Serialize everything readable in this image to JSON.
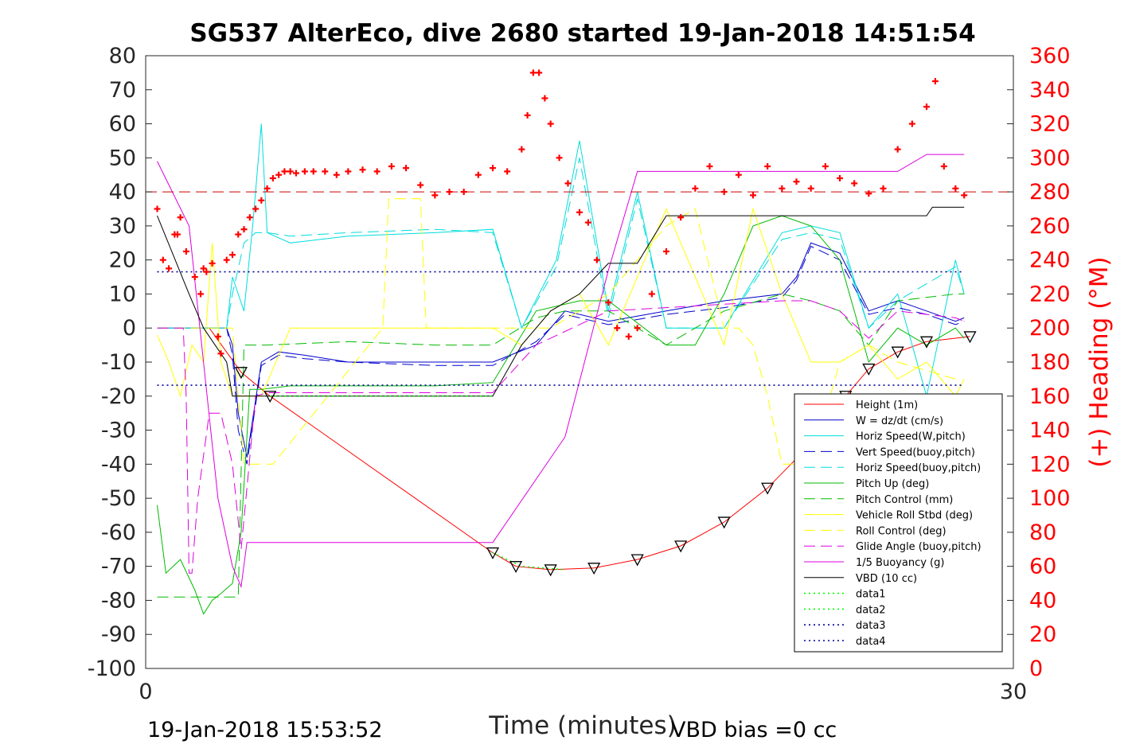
{
  "chart_data": {
    "type": "line",
    "title": "SG537 AlterEco, dive 2680 started 19-Jan-2018 14:51:54",
    "xlabel": "Time (minutes)",
    "ylabel_right": "(+) Heading (°M)",
    "xlim": [
      0,
      30
    ],
    "ylim": [
      -100,
      80
    ],
    "ylim_right": [
      0,
      360
    ],
    "xticks": [
      "0",
      "30"
    ],
    "yticks": [
      "80",
      "70",
      "60",
      "50",
      "40",
      "30",
      "20",
      "10",
      "0",
      "-10",
      "-20",
      "-30",
      "-40",
      "-50",
      "-60",
      "-70",
      "-80",
      "-90",
      "-100"
    ],
    "yticks_right": [
      "360",
      "340",
      "320",
      "300",
      "280",
      "260",
      "240",
      "220",
      "200",
      "180",
      "160",
      "140",
      "120",
      "100",
      "80",
      "60",
      "40",
      "20",
      "0"
    ],
    "footer_left": "19-Jan-2018 15:53:52",
    "footer_right": "VBD bias =0 cc",
    "legend_position": "lower-right",
    "grid": true,
    "series": [
      {
        "name": "Height (1m)",
        "color": "#ff0000",
        "style": "solid",
        "x": [
          2.2,
          3.3,
          4.3,
          12,
          12.8,
          14,
          15.5,
          17,
          18.5,
          20,
          21.5,
          23,
          24.2,
          25,
          26,
          27,
          28.5
        ],
        "y": [
          0,
          -13,
          -20,
          -66,
          -70,
          -71,
          -70.5,
          -68,
          -64,
          -57,
          -47,
          -34,
          -20,
          -12,
          -7,
          -4,
          -2.5
        ]
      },
      {
        "name": "W = dz/dt (cm/s)",
        "color": "#0000cc",
        "style": "solid",
        "x": [
          0.4,
          2.8,
          3,
          3.2,
          3.5,
          4.0,
          4.6,
          5.5,
          7,
          10,
          12,
          13.5,
          14.5,
          16,
          18,
          20,
          22,
          22.5,
          23,
          24,
          25,
          26,
          27,
          28,
          28.3
        ],
        "y": [
          0,
          0,
          -5,
          -25,
          -38,
          -10,
          -7,
          -8,
          -10,
          -10,
          -10,
          -5,
          5,
          2,
          5,
          8,
          10,
          15,
          25,
          22,
          5,
          8,
          5,
          2,
          3
        ]
      },
      {
        "name": "Horiz Speed(W,pitch)",
        "color": "#00dddd",
        "style": "solid",
        "x": [
          0.4,
          2.8,
          3,
          3.4,
          3.7,
          4.0,
          4.2,
          5,
          7,
          10,
          12,
          13,
          14.2,
          15,
          16,
          17,
          18,
          20,
          22,
          23,
          24,
          25,
          26,
          27,
          28,
          28.3
        ],
        "y": [
          0,
          0,
          15,
          5,
          30,
          60,
          28,
          25,
          27,
          28,
          29,
          0,
          20,
          55,
          5,
          40,
          0,
          0,
          28,
          30,
          28,
          0,
          10,
          -20,
          20,
          10
        ]
      },
      {
        "name": "Vert Speed(buoy,pitch)",
        "color": "#0000cc",
        "style": "dashed",
        "x": [
          0.4,
          2.8,
          3,
          3.2,
          3.5,
          4.0,
          4.6,
          5.5,
          7,
          10,
          12,
          13.5,
          14.5,
          16,
          18,
          20,
          22,
          22.5,
          23,
          24,
          25,
          26,
          27,
          28,
          28.3
        ],
        "y": [
          0,
          0,
          -8,
          -30,
          -40,
          -11,
          -8,
          -9,
          -10,
          -11,
          -11,
          -4,
          4,
          1,
          4,
          6,
          9,
          14,
          24,
          20,
          4,
          6,
          4,
          1,
          2
        ]
      },
      {
        "name": "Horiz Speed(buoy,pitch)",
        "color": "#00dddd",
        "style": "dashed",
        "x": [
          0.4,
          2.8,
          3.0,
          3.4,
          3.8,
          4.2,
          5,
          7,
          10,
          12,
          13,
          14.2,
          15,
          16,
          17,
          18,
          20,
          22,
          23,
          24,
          25,
          26,
          28,
          28.3
        ],
        "y": [
          0,
          0,
          10,
          25,
          28,
          28,
          27,
          28,
          29,
          28,
          0,
          18,
          50,
          3,
          38,
          0,
          0,
          26,
          28,
          26,
          0,
          8,
          18,
          10
        ]
      },
      {
        "name": "Pitch Up (deg)",
        "color": "#00bb00",
        "style": "solid",
        "x": [
          0.4,
          0.7,
          1.2,
          1.7,
          2.0,
          2.3,
          2.6,
          3.0,
          3.3,
          3.6,
          4.0,
          5,
          7,
          10,
          12,
          13.5,
          15,
          16,
          18,
          19,
          20,
          21,
          22,
          23,
          24,
          25,
          26,
          27,
          28,
          28.3
        ],
        "y": [
          -52,
          -72,
          -68,
          -77,
          -84,
          -80,
          -78,
          -75,
          -60,
          -18,
          -18,
          -17,
          -17,
          -17,
          -16,
          5,
          8,
          8,
          -5,
          -5,
          10,
          30,
          33,
          30,
          20,
          -10,
          0,
          -5,
          0,
          -3
        ]
      },
      {
        "name": "Pitch Control (mm)",
        "color": "#00bb00",
        "style": "dashed",
        "x": [
          0.4,
          1.2,
          1.3,
          2.7,
          2.8,
          3.2,
          3.4,
          4.2,
          7,
          10,
          12,
          13.5,
          14.5,
          16,
          18,
          20,
          22,
          23,
          24,
          25,
          26,
          28,
          28.3
        ],
        "y": [
          -79,
          -79,
          -79,
          -79,
          -79,
          -79,
          -5,
          -5,
          -4,
          -5,
          -5,
          3,
          5,
          5,
          -5,
          5,
          10,
          8,
          5,
          -5,
          8,
          10,
          10
        ]
      },
      {
        "name": "Vehicle Roll Stbd (deg)",
        "color": "#ffff00",
        "style": "solid",
        "x": [
          0.4,
          0.8,
          1.2,
          1.6,
          2.0,
          2.3,
          2.6,
          3,
          3.5,
          4.0,
          5,
          7,
          8,
          10,
          11,
          12,
          13,
          14,
          15,
          16,
          18,
          20,
          21,
          22,
          23,
          24,
          25,
          26,
          27,
          28,
          28.3
        ],
        "y": [
          -2,
          -10,
          -20,
          -5,
          -10,
          25,
          -10,
          -20,
          -20,
          -20,
          0,
          0,
          0,
          0,
          0,
          0,
          -5,
          5,
          10,
          -5,
          35,
          -5,
          35,
          10,
          -10,
          -10,
          -5,
          -15,
          -10,
          -20,
          -15
        ]
      },
      {
        "name": "Roll Control (deg)",
        "color": "#ffff00",
        "style": "dashed",
        "x": [
          0.4,
          3.0,
          3.4,
          4.0,
          4.4,
          8.2,
          8.4,
          9.5,
          9.7,
          12,
          14,
          16,
          18,
          19,
          20,
          20.5,
          21,
          21.5,
          22,
          23,
          24,
          25,
          26,
          28
        ],
        "y": [
          0,
          0,
          -40,
          -40,
          -40,
          0,
          38,
          38,
          0,
          0,
          0,
          10,
          30,
          35,
          0,
          0,
          -5,
          -20,
          -40,
          -40,
          -10,
          -5,
          -10,
          -15
        ]
      },
      {
        "name": "Glide Angle (buoy,pitch)",
        "color": "#dd00dd",
        "style": "dashed",
        "x": [
          0.4,
          1.3,
          1.4,
          1.5,
          1.6,
          1.8,
          2.2,
          2.6,
          3.0,
          3.3,
          3.8,
          4.2,
          5,
          7,
          10,
          12,
          13.5,
          16,
          18,
          20,
          22,
          23,
          24,
          25,
          26,
          28,
          28.3
        ],
        "y": [
          0,
          0,
          -20,
          -72,
          -72,
          -50,
          -25,
          -25,
          -40,
          -65,
          -20,
          -19,
          -19,
          -19,
          -19,
          -19,
          -5,
          5,
          6,
          7,
          8,
          8,
          5,
          -3,
          5,
          3,
          2
        ]
      },
      {
        "name": "1/5 Buoyancy (g)",
        "color": "#dd00dd",
        "style": "solid",
        "x": [
          0.4,
          1.5,
          2.5,
          3.0,
          3.3,
          3.5,
          12,
          14.5,
          16,
          17,
          20,
          22,
          25,
          26,
          27,
          28.3
        ],
        "y": [
          49,
          30,
          -50,
          -70,
          -76,
          -63,
          -63,
          -32,
          17,
          46,
          46,
          46,
          46,
          46,
          51,
          51
        ]
      },
      {
        "name": "VBD (10 cc)",
        "color": "#000000",
        "style": "solid",
        "x": [
          0.4,
          1.5,
          2.0,
          2.8,
          3.0,
          4.5,
          12,
          13,
          14,
          15,
          16,
          17,
          18,
          19,
          21,
          23,
          24,
          25,
          26,
          27,
          27.2,
          28.3
        ],
        "y": [
          33,
          10,
          0,
          -10,
          -20,
          -20,
          -20,
          -5,
          5,
          10,
          19,
          19,
          33,
          33,
          33,
          33,
          33,
          33,
          33,
          33,
          35.5,
          35.5
        ]
      },
      {
        "name": "data1",
        "color": "#00ff00",
        "style": "dotted",
        "x": [
          12,
          13,
          14.5
        ],
        "y": [
          -66,
          -70,
          -71
        ]
      },
      {
        "name": "data2",
        "color": "#00ff00",
        "style": "dotted",
        "x": [
          4.3,
          12
        ],
        "y": [
          -20,
          -20
        ]
      },
      {
        "name": "data3",
        "color": "#000099",
        "style": "dotted",
        "x": [
          0.4,
          28.3
        ],
        "y": [
          16.5,
          16.5
        ]
      },
      {
        "name": "data4",
        "color": "#000099",
        "style": "dotted",
        "x": [
          0.4,
          28.3
        ],
        "y": [
          -16.8,
          -16.8
        ]
      }
    ],
    "heading_mean": 280,
    "heading_points": {
      "name": "Heading",
      "color": "#ff0000",
      "x": [
        0.4,
        0.6,
        0.8,
        1.0,
        1.1,
        1.2,
        1.4,
        1.7,
        1.9,
        2.0,
        2.1,
        2.3,
        2.5,
        2.6,
        2.8,
        3.0,
        3.2,
        3.4,
        3.6,
        3.8,
        4.0,
        4.2,
        4.4,
        4.6,
        4.8,
        5.0,
        5.2,
        5.5,
        5.8,
        6.2,
        6.6,
        7.0,
        7.5,
        8.0,
        8.5,
        9.0,
        9.5,
        10.0,
        10.5,
        11.0,
        11.5,
        12.0,
        12.5,
        13.0,
        13.2,
        13.4,
        13.6,
        13.8,
        14.0,
        14.3,
        14.6,
        15.0,
        15.3,
        15.6,
        16.0,
        16.3,
        16.7,
        17.0,
        17.5,
        18.0,
        18.5,
        19.0,
        19.5,
        20.0,
        20.5,
        21.0,
        21.5,
        22.0,
        22.5,
        23.0,
        23.5,
        24.0,
        24.5,
        25.0,
        25.5,
        26.0,
        26.5,
        27.0,
        27.3,
        27.6,
        28.0,
        28.3
      ],
      "y": [
        270,
        240,
        235,
        255,
        255,
        265,
        245,
        230,
        220,
        235,
        233,
        238,
        195,
        185,
        240,
        243,
        255,
        258,
        265,
        270,
        275,
        282,
        288,
        290,
        292,
        292,
        291,
        292,
        292,
        292,
        290,
        292,
        293,
        292,
        295,
        294,
        284,
        278,
        280,
        280,
        290,
        294,
        292,
        305,
        325,
        350,
        350,
        335,
        320,
        300,
        285,
        268,
        262,
        240,
        215,
        200,
        195,
        200,
        220,
        245,
        265,
        282,
        295,
        280,
        290,
        278,
        295,
        282,
        286,
        282,
        295,
        288,
        285,
        279,
        282,
        305,
        320,
        330,
        345,
        295,
        282,
        278
      ]
    }
  }
}
